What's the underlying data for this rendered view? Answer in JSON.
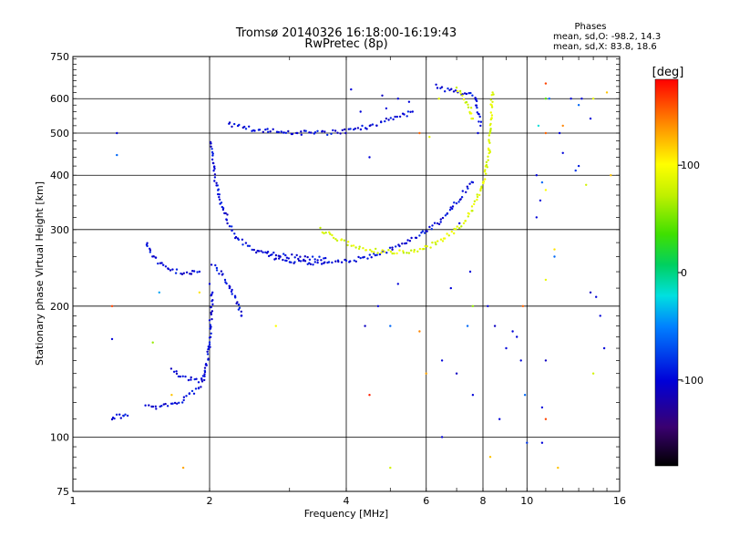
{
  "chart_data": {
    "type": "scatter",
    "title": "Tromsø 20140326 16:18:00-16:19:43",
    "subtitle": "RwPretec (8p)",
    "xlabel": "Frequency [MHz]",
    "ylabel": "Stationary phase Virtual Height [km]",
    "xscale": "log",
    "yscale": "log",
    "xlim": [
      1,
      16
    ],
    "ylim": [
      75,
      750
    ],
    "grid": true,
    "x_ticks": [
      1,
      2,
      4,
      6,
      8,
      10,
      16
    ],
    "y_ticks": [
      75,
      100,
      200,
      300,
      400,
      500,
      600,
      750
    ],
    "x_tick_labels": [
      "1",
      "2",
      "4",
      "6",
      "8",
      "10",
      "16"
    ],
    "y_tick_labels": [
      "75",
      "100",
      "200",
      "300",
      "400",
      "500",
      "600",
      "750"
    ],
    "colorbar": {
      "label": "[deg]",
      "range": [
        -180,
        180
      ],
      "ticks": [
        100,
        0,
        -100
      ],
      "tick_labels": [
        "100",
        "0",
        "-100"
      ]
    },
    "phase_stats": {
      "heading": "Phases",
      "line_o": "mean, sd,O: -98.2, 14.3",
      "line_x": "mean, sd,X:  83.8, 18.6"
    },
    "series": [
      {
        "phase": -98.2,
        "traces": [
          [
            [
              1.22,
              110
            ],
            [
              1.25,
              112
            ],
            [
              1.28,
              111
            ],
            [
              1.3,
              113
            ],
            [
              1.32,
              112
            ]
          ],
          [
            [
              1.45,
              118
            ],
            [
              1.5,
              117
            ],
            [
              1.6,
              118
            ],
            [
              1.7,
              120
            ],
            [
              1.75,
              122
            ],
            [
              1.8,
              125
            ],
            [
              1.85,
              127
            ],
            [
              1.9,
              130
            ],
            [
              1.95,
              138
            ],
            [
              1.98,
              150
            ],
            [
              2.0,
              165
            ],
            [
              2.01,
              185
            ],
            [
              2.02,
              200
            ],
            [
              2.03,
              215
            ]
          ],
          [
            [
              1.65,
              142
            ],
            [
              1.75,
              137
            ],
            [
              1.85,
              136
            ],
            [
              1.9,
              135
            ],
            [
              1.95,
              138
            ]
          ],
          [
            [
              1.45,
              280
            ],
            [
              1.5,
              260
            ],
            [
              1.6,
              245
            ],
            [
              1.7,
              240
            ],
            [
              1.8,
              238
            ],
            [
              1.9,
              240
            ]
          ],
          [
            [
              2.02,
              475
            ],
            [
              2.05,
              400
            ],
            [
              2.1,
              360
            ],
            [
              2.2,
              310
            ],
            [
              2.3,
              285
            ],
            [
              2.5,
              270
            ],
            [
              2.8,
              258
            ],
            [
              3.2,
              252
            ],
            [
              3.6,
              250
            ],
            [
              4.0,
              254
            ],
            [
              4.4,
              258
            ],
            [
              4.8,
              266
            ],
            [
              5.2,
              274
            ],
            [
              5.6,
              285
            ],
            [
              6.0,
              298
            ],
            [
              6.4,
              312
            ],
            [
              6.8,
              335
            ],
            [
              7.2,
              360
            ],
            [
              7.6,
              385
            ]
          ],
          [
            [
              2.03,
              250
            ],
            [
              2.1,
              240
            ],
            [
              2.2,
              225
            ],
            [
              2.3,
              205
            ],
            [
              2.35,
              190
            ]
          ],
          [
            [
              2.7,
              265
            ],
            [
              3.0,
              260
            ],
            [
              3.3,
              258
            ],
            [
              3.6,
              258
            ]
          ],
          [
            [
              2.2,
              525
            ],
            [
              2.5,
              510
            ],
            [
              2.8,
              505
            ],
            [
              3.2,
              500
            ],
            [
              3.6,
              500
            ],
            [
              4.0,
              505
            ],
            [
              4.4,
              515
            ],
            [
              4.8,
              530
            ],
            [
              5.2,
              545
            ],
            [
              5.6,
              560
            ]
          ],
          [
            [
              6.3,
              640
            ],
            [
              6.6,
              630
            ],
            [
              7.7,
              610
            ],
            [
              7.8,
              560
            ],
            [
              7.9,
              520
            ]
          ]
        ]
      },
      {
        "phase": 83.8,
        "traces": [
          [
            [
              3.5,
              300
            ],
            [
              3.8,
              285
            ],
            [
              4.2,
              275
            ],
            [
              4.6,
              268
            ],
            [
              5.0,
              266
            ],
            [
              5.5,
              266
            ],
            [
              6.0,
              272
            ],
            [
              6.5,
              285
            ],
            [
              7.0,
              300
            ],
            [
              7.4,
              320
            ],
            [
              7.7,
              345
            ],
            [
              7.9,
              370
            ],
            [
              8.1,
              400
            ],
            [
              8.25,
              450
            ],
            [
              8.3,
              500
            ],
            [
              8.35,
              560
            ],
            [
              8.4,
              620
            ]
          ],
          [
            [
              7.0,
              630
            ],
            [
              7.3,
              600
            ],
            [
              7.5,
              570
            ],
            [
              7.6,
              540
            ]
          ]
        ]
      }
    ],
    "scatter_points": [
      [
        1.25,
        500,
        -100
      ],
      [
        1.25,
        445,
        -60
      ],
      [
        1.22,
        200,
        160
      ],
      [
        1.22,
        168,
        -100
      ],
      [
        1.5,
        165,
        60
      ],
      [
        1.65,
        125,
        120
      ],
      [
        1.55,
        215,
        -40
      ],
      [
        1.9,
        215,
        110
      ],
      [
        1.75,
        85,
        130
      ],
      [
        2.0,
        225,
        -100
      ],
      [
        2.35,
        190,
        -100
      ],
      [
        2.8,
        180,
        100
      ],
      [
        4.1,
        630,
        -100
      ],
      [
        4.8,
        610,
        -110
      ],
      [
        5.5,
        590,
        -100
      ],
      [
        5.8,
        500,
        150
      ],
      [
        6.1,
        490,
        90
      ],
      [
        6.4,
        600,
        90
      ],
      [
        5.0,
        180,
        -60
      ],
      [
        5.8,
        175,
        140
      ],
      [
        6.5,
        150,
        -100
      ],
      [
        7.0,
        140,
        -110
      ],
      [
        7.6,
        125,
        -100
      ],
      [
        6.5,
        100,
        -100
      ],
      [
        6.0,
        140,
        130
      ],
      [
        4.5,
        125,
        170
      ],
      [
        5.0,
        85,
        80
      ],
      [
        8.2,
        200,
        -100
      ],
      [
        8.5,
        180,
        -110
      ],
      [
        8.3,
        90,
        120
      ],
      [
        8.7,
        110,
        -100
      ],
      [
        9.0,
        160,
        -100
      ],
      [
        9.3,
        175,
        -100
      ],
      [
        9.5,
        170,
        -100
      ],
      [
        9.7,
        150,
        -100
      ],
      [
        9.9,
        125,
        -60
      ],
      [
        10.0,
        97,
        -80
      ],
      [
        9.8,
        200,
        150
      ],
      [
        10.5,
        400,
        -100
      ],
      [
        10.8,
        385,
        -60
      ],
      [
        11.0,
        370,
        100
      ],
      [
        11.0,
        500,
        150
      ],
      [
        11.0,
        650,
        160
      ],
      [
        11.2,
        600,
        -60
      ],
      [
        11.0,
        600,
        40
      ],
      [
        10.6,
        520,
        -20
      ],
      [
        10.7,
        350,
        -100
      ],
      [
        10.5,
        320,
        -100
      ],
      [
        11.5,
        270,
        110
      ],
      [
        11.5,
        260,
        -60
      ],
      [
        11.0,
        230,
        90
      ],
      [
        11.0,
        150,
        -110
      ],
      [
        10.8,
        117,
        -100
      ],
      [
        11.0,
        110,
        160
      ],
      [
        10.8,
        97,
        -100
      ],
      [
        11.7,
        85,
        120
      ],
      [
        12.0,
        450,
        -100
      ],
      [
        11.8,
        500,
        -100
      ],
      [
        12.0,
        520,
        140
      ],
      [
        12.5,
        600,
        -100
      ],
      [
        13.0,
        580,
        -60
      ],
      [
        13.2,
        600,
        -100
      ],
      [
        13.8,
        540,
        -100
      ],
      [
        14.0,
        600,
        90
      ],
      [
        13.5,
        380,
        80
      ],
      [
        14.2,
        210,
        -100
      ],
      [
        13.8,
        215,
        -110
      ],
      [
        14.5,
        190,
        -100
      ],
      [
        14.8,
        160,
        -100
      ],
      [
        14.0,
        140,
        80
      ],
      [
        15.0,
        620,
        120
      ],
      [
        15.3,
        400,
        120
      ],
      [
        13.0,
        420,
        -90
      ],
      [
        12.8,
        410,
        -80
      ],
      [
        7.1,
        310,
        -100
      ],
      [
        7.8,
        500,
        -100
      ],
      [
        7.5,
        240,
        -100
      ],
      [
        7.6,
        200,
        60
      ],
      [
        7.4,
        180,
        -60
      ],
      [
        6.8,
        220,
        -100
      ],
      [
        4.7,
        200,
        -100
      ],
      [
        4.4,
        180,
        -110
      ],
      [
        5.2,
        225,
        -100
      ],
      [
        4.5,
        440,
        -100
      ],
      [
        4.3,
        560,
        -100
      ],
      [
        4.9,
        570,
        -100
      ],
      [
        5.2,
        600,
        -100
      ]
    ]
  }
}
